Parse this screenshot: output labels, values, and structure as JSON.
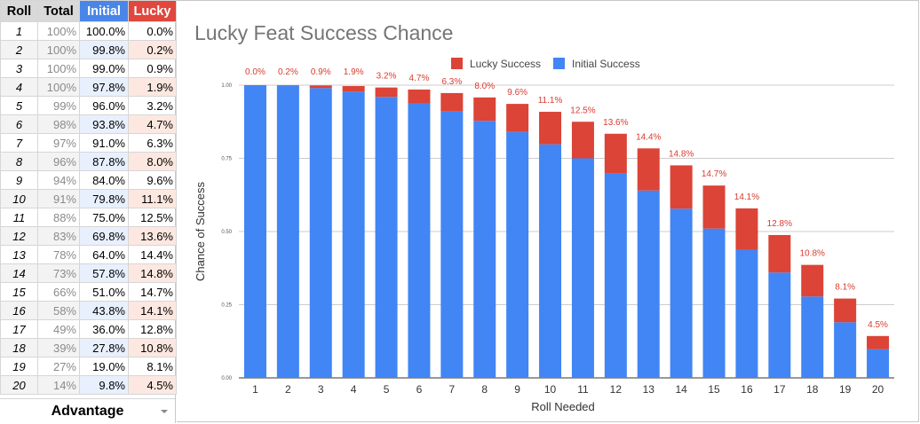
{
  "sheet": {
    "headers": {
      "roll": "Roll",
      "total": "Total",
      "initial": "Initial",
      "lucky": "Lucky"
    },
    "rows": [
      {
        "roll": "1",
        "total": "100%",
        "initial": "100.0%",
        "lucky": "0.0%"
      },
      {
        "roll": "2",
        "total": "100%",
        "initial": "99.8%",
        "lucky": "0.2%"
      },
      {
        "roll": "3",
        "total": "100%",
        "initial": "99.0%",
        "lucky": "0.9%"
      },
      {
        "roll": "4",
        "total": "100%",
        "initial": "97.8%",
        "lucky": "1.9%"
      },
      {
        "roll": "5",
        "total": "99%",
        "initial": "96.0%",
        "lucky": "3.2%"
      },
      {
        "roll": "6",
        "total": "98%",
        "initial": "93.8%",
        "lucky": "4.7%"
      },
      {
        "roll": "7",
        "total": "97%",
        "initial": "91.0%",
        "lucky": "6.3%"
      },
      {
        "roll": "8",
        "total": "96%",
        "initial": "87.8%",
        "lucky": "8.0%"
      },
      {
        "roll": "9",
        "total": "94%",
        "initial": "84.0%",
        "lucky": "9.6%"
      },
      {
        "roll": "10",
        "total": "91%",
        "initial": "79.8%",
        "lucky": "11.1%"
      },
      {
        "roll": "11",
        "total": "88%",
        "initial": "75.0%",
        "lucky": "12.5%"
      },
      {
        "roll": "12",
        "total": "83%",
        "initial": "69.8%",
        "lucky": "13.6%"
      },
      {
        "roll": "13",
        "total": "78%",
        "initial": "64.0%",
        "lucky": "14.4%"
      },
      {
        "roll": "14",
        "total": "73%",
        "initial": "57.8%",
        "lucky": "14.8%"
      },
      {
        "roll": "15",
        "total": "66%",
        "initial": "51.0%",
        "lucky": "14.7%"
      },
      {
        "roll": "16",
        "total": "58%",
        "initial": "43.8%",
        "lucky": "14.1%"
      },
      {
        "roll": "17",
        "total": "49%",
        "initial": "36.0%",
        "lucky": "12.8%"
      },
      {
        "roll": "18",
        "total": "39%",
        "initial": "27.8%",
        "lucky": "10.8%"
      },
      {
        "roll": "19",
        "total": "27%",
        "initial": "19.0%",
        "lucky": "8.1%"
      },
      {
        "roll": "20",
        "total": "14%",
        "initial": "9.8%",
        "lucky": "4.5%"
      }
    ],
    "tab_label": "Advantage"
  },
  "colors": {
    "initial": "#4285f4",
    "lucky": "#db4437",
    "grid": "#cccccc"
  },
  "chart_data": {
    "type": "bar",
    "stacked": true,
    "title": "Lucky Feat Success Chance",
    "xlabel": "Roll Needed",
    "ylabel": "Chance of Success",
    "ylim": [
      0,
      1
    ],
    "yticks": [
      "0.00",
      "0.25",
      "0.50",
      "0.75",
      "1.00"
    ],
    "ytick_values": [
      0,
      0.25,
      0.5,
      0.75,
      1.0
    ],
    "legend_position": "top-center",
    "categories": [
      "1",
      "2",
      "3",
      "4",
      "5",
      "6",
      "7",
      "8",
      "9",
      "10",
      "11",
      "12",
      "13",
      "14",
      "15",
      "16",
      "17",
      "18",
      "19",
      "20"
    ],
    "series": [
      {
        "name": "Initial Success",
        "key": "initial",
        "values": [
          1.0,
          0.998,
          0.99,
          0.978,
          0.96,
          0.938,
          0.91,
          0.878,
          0.84,
          0.798,
          0.75,
          0.698,
          0.64,
          0.578,
          0.51,
          0.438,
          0.36,
          0.278,
          0.19,
          0.098
        ]
      },
      {
        "name": "Lucky Success",
        "key": "lucky",
        "values": [
          0.0,
          0.002,
          0.009,
          0.019,
          0.032,
          0.047,
          0.063,
          0.08,
          0.096,
          0.111,
          0.125,
          0.136,
          0.144,
          0.148,
          0.147,
          0.141,
          0.128,
          0.108,
          0.081,
          0.045
        ]
      }
    ],
    "data_labels": [
      "0.0%",
      "0.2%",
      "0.9%",
      "1.9%",
      "3.2%",
      "4.7%",
      "6.3%",
      "8.0%",
      "9.6%",
      "11.1%",
      "12.5%",
      "13.6%",
      "14.4%",
      "14.8%",
      "14.7%",
      "14.1%",
      "12.8%",
      "10.8%",
      "8.1%",
      "4.5%"
    ],
    "legend": [
      "Lucky Success",
      "Initial Success"
    ]
  }
}
